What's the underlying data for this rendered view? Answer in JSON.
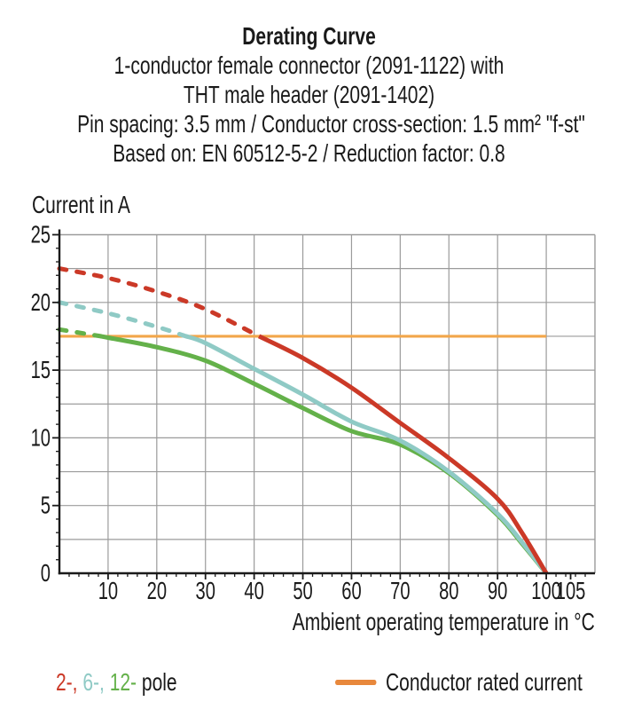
{
  "header": {
    "title": "Derating Curve",
    "subtitle_lines": [
      "1-conductor female connector (2091-1122) with",
      "THT male header (2091-1402)",
      "Pin spacing: 3.5 mm / Conductor cross-section: 1.5 mm² \"f-st\"",
      "Based on: EN 60512-5-2 / Reduction factor: 0.8"
    ]
  },
  "chart_data": {
    "type": "line",
    "title": "Derating Curve",
    "xlabel": "Ambient operating temperature in °C",
    "ylabel": "Current in A",
    "xlim": [
      0,
      110
    ],
    "ylim": [
      0,
      25
    ],
    "xticks": [
      10,
      20,
      30,
      40,
      50,
      60,
      70,
      80,
      90,
      100,
      105
    ],
    "yticks": [
      0,
      5,
      10,
      15,
      20,
      25
    ],
    "x_grid_step": 10,
    "x_grid_max": 100,
    "y_grid_step": 2.5,
    "x_minor_step": 2,
    "y_minor_step": 1,
    "grid": true,
    "legend_position": "bottom",
    "rated_current_line": {
      "name": "Conductor rated current",
      "y": 17.5,
      "x_range": [
        0,
        100
      ],
      "color": "#f2a64a"
    },
    "series": [
      {
        "name": "12-pole",
        "color": "#64b14a",
        "dash_transition_x": 8.5,
        "dash_style_above_rated": "dashed",
        "points": [
          [
            0,
            18.0
          ],
          [
            8.5,
            17.5
          ],
          [
            10,
            17.4
          ],
          [
            20,
            16.7
          ],
          [
            30,
            15.7
          ],
          [
            40,
            14.0
          ],
          [
            50,
            12.2
          ],
          [
            60,
            10.5
          ],
          [
            70,
            9.5
          ],
          [
            80,
            7.4
          ],
          [
            90,
            4.3
          ],
          [
            95,
            2.2
          ],
          [
            100,
            0
          ]
        ]
      },
      {
        "name": "6-pole",
        "color": "#8fcac5",
        "dash_transition_x": 26,
        "dash_style_above_rated": "dashed",
        "points": [
          [
            0,
            20.0
          ],
          [
            10,
            19.2
          ],
          [
            20,
            18.2
          ],
          [
            26,
            17.5
          ],
          [
            30,
            17.0
          ],
          [
            40,
            15.1
          ],
          [
            50,
            13.2
          ],
          [
            60,
            11.2
          ],
          [
            70,
            9.8
          ],
          [
            80,
            7.5
          ],
          [
            90,
            4.4
          ],
          [
            95,
            2.3
          ],
          [
            100,
            0
          ]
        ]
      },
      {
        "name": "2-pole",
        "color": "#cb3927",
        "dash_transition_x": 41,
        "dash_style_above_rated": "dashed",
        "points": [
          [
            0,
            22.5
          ],
          [
            10,
            21.8
          ],
          [
            20,
            20.8
          ],
          [
            30,
            19.5
          ],
          [
            41,
            17.5
          ],
          [
            50,
            15.9
          ],
          [
            60,
            13.7
          ],
          [
            70,
            11.1
          ],
          [
            80,
            8.5
          ],
          [
            90,
            5.5
          ],
          [
            95,
            3.0
          ],
          [
            100,
            0
          ]
        ]
      }
    ]
  },
  "legend": {
    "pole_parts": [
      {
        "text": "2-,",
        "color": "#cb3927"
      },
      {
        "text": " ",
        "color": "#1a1a1a"
      },
      {
        "text": "6-,",
        "color": "#8fcac5"
      },
      {
        "text": " ",
        "color": "#1a1a1a"
      },
      {
        "text": "12-",
        "color": "#64b14a"
      }
    ],
    "pole_suffix": " pole",
    "rated": {
      "label": "Conductor rated current",
      "color": "#e8883c"
    }
  },
  "colors": {
    "grid": "#9b9b9b",
    "axis": "#1a1a1a",
    "text": "#1a1a1a",
    "pole2": "#cb3927",
    "pole6": "#8fcac5",
    "pole12": "#64b14a",
    "rated_line": "#f2a64a",
    "rated_swatch": "#e8883c"
  }
}
